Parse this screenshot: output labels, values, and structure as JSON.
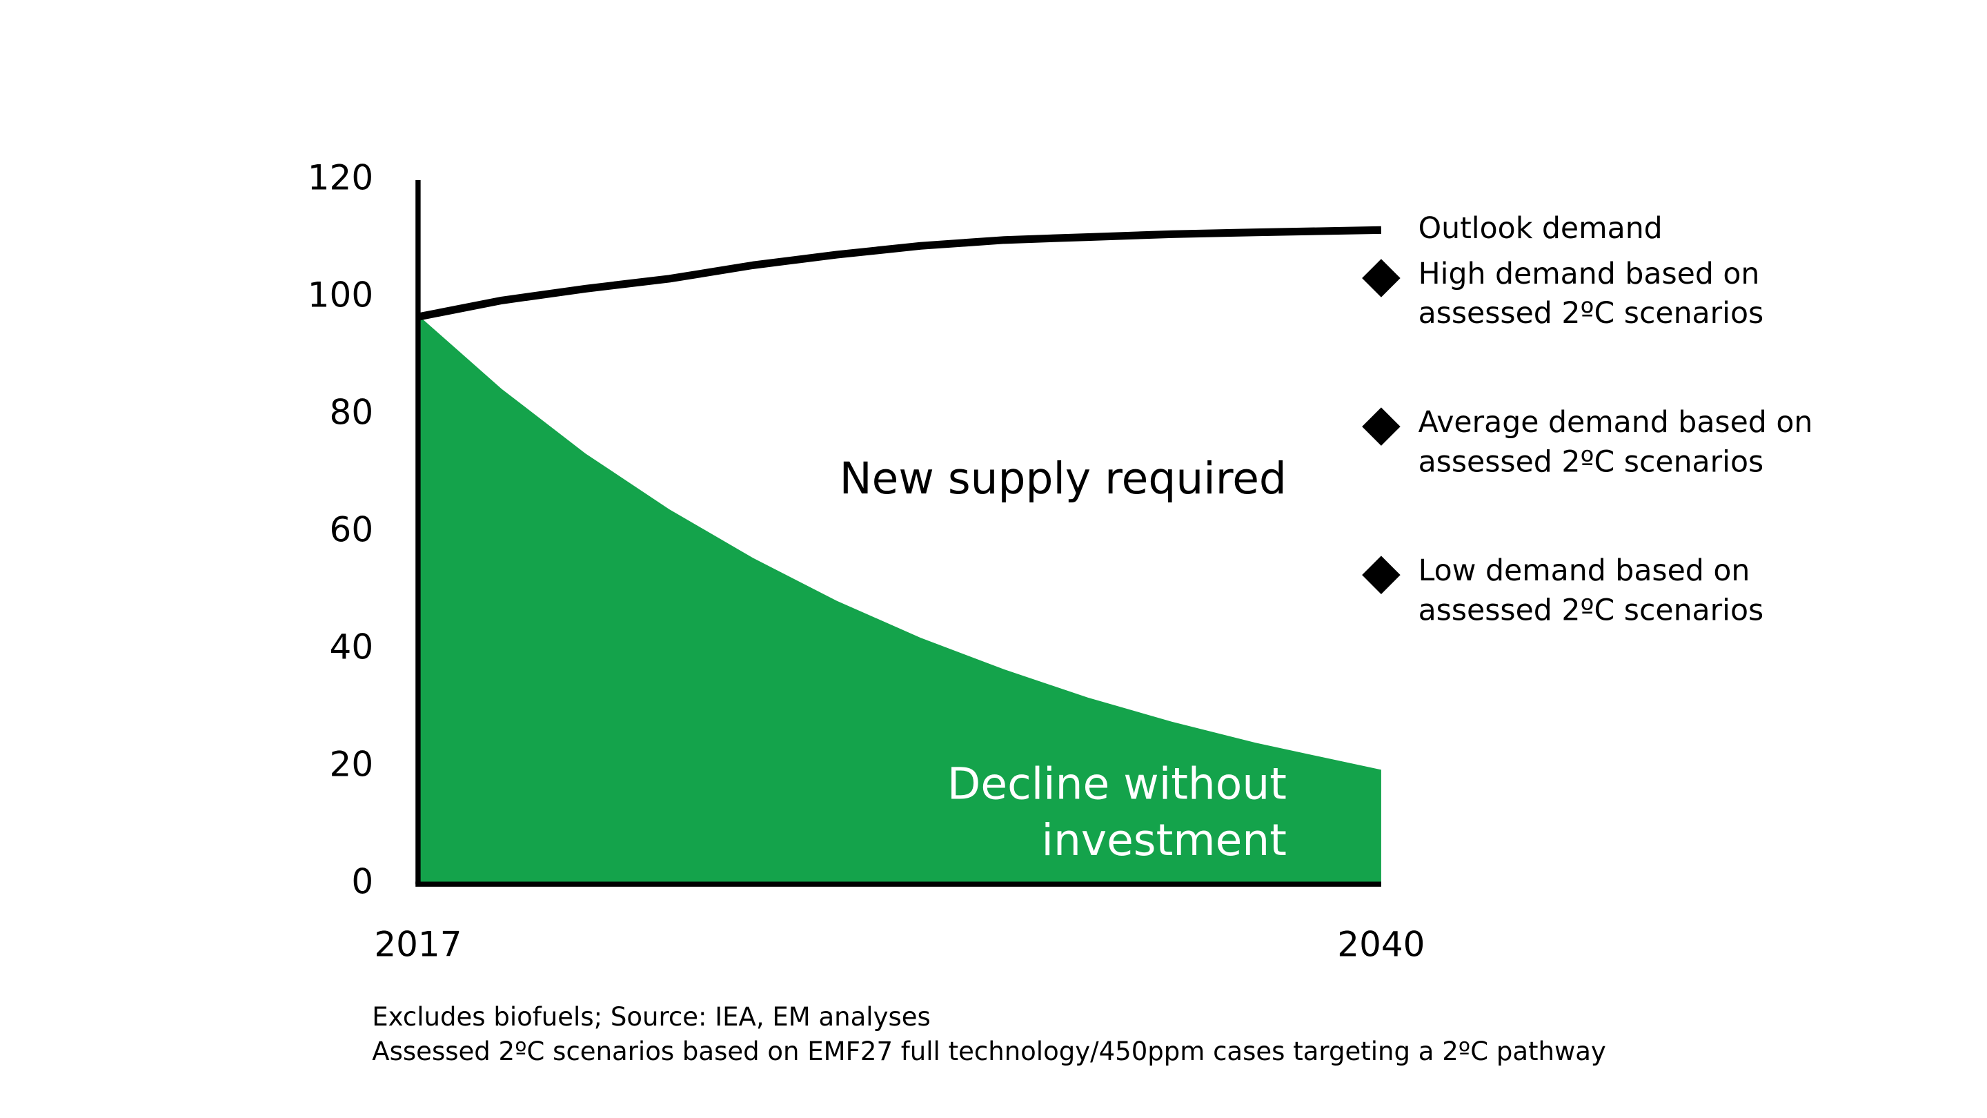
{
  "chart_data": {
    "type": "line",
    "x": [
      2017,
      2019,
      2021,
      2023,
      2025,
      2027,
      2029,
      2031,
      2033,
      2035,
      2037,
      2040
    ],
    "xlim": [
      2017,
      2040
    ],
    "xticks": [
      2017,
      2040
    ],
    "ylim": [
      0,
      120
    ],
    "yticks": [
      0,
      20,
      40,
      60,
      80,
      100,
      120
    ],
    "series": [
      {
        "name": "Outlook demand",
        "type": "line",
        "color": "#000000",
        "values": [
          96.7,
          99.5,
          101.5,
          103.2,
          105.5,
          107.3,
          108.8,
          109.8,
          110.3,
          110.8,
          111.1,
          111.5
        ]
      },
      {
        "type": "area",
        "color": "#14a34b",
        "values": [
          97,
          84.4,
          73.4,
          63.9,
          55.6,
          48.3,
          42.0,
          36.6,
          31.8,
          27.7,
          24.1,
          19.5
        ]
      },
      {
        "type": "scatter",
        "color": "#000000",
        "x": [
          2040,
          2040,
          2040
        ],
        "values": [
          103.3,
          78,
          52.7
        ],
        "labels": [
          [
            "High demand based on",
            "assessed  2ºC scenarios"
          ],
          [
            "Average demand based on",
            "assessed 2ºC scenarios"
          ],
          [
            "Low demand based on",
            "assessed 2ºC scenarios"
          ]
        ]
      }
    ],
    "annotations": [
      "New supply required",
      [
        "Decline without",
        "investment"
      ]
    ],
    "footnotes": [
      "Excludes biofuels; Source: IEA, EM analyses",
      "Assessed 2ºC scenarios based on EMF27 full technology/450ppm cases targeting a 2ºC pathway"
    ]
  }
}
